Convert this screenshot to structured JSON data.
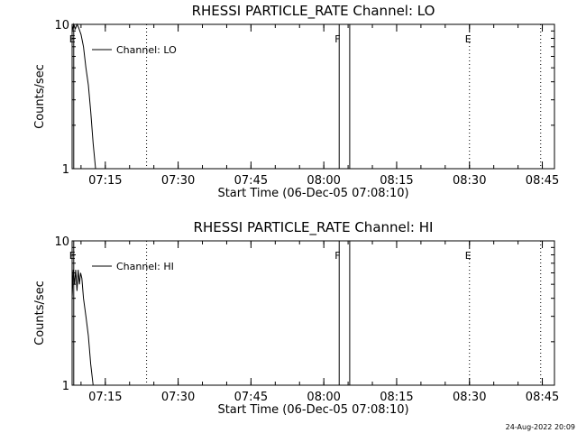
{
  "chart_data": [
    {
      "type": "line",
      "title": "RHESSI PARTICLE_RATE Channel: LO",
      "xlabel": "Start Time (06-Dec-05 07:08:10)",
      "ylabel": "Counts/sec",
      "yscale": "log",
      "ylim": [
        1,
        10
      ],
      "xlim": [
        "07:08:10",
        "08:47:30"
      ],
      "xticks": [
        "07:15",
        "07:30",
        "07:45",
        "08:00",
        "08:15",
        "08:30",
        "08:45"
      ],
      "yticks": [
        "1",
        "10"
      ],
      "legend": {
        "label": "Channel: LO",
        "placement": "top-left"
      },
      "series": [
        {
          "name": "Channel: LO",
          "x": [
            "07:08:10",
            "07:08:30",
            "07:08:50",
            "07:09:10",
            "07:09:30",
            "07:10:00",
            "07:10:30",
            "07:11:00",
            "07:11:30",
            "07:12:00",
            "07:12:30",
            "07:13:00"
          ],
          "y": [
            9.0,
            10.0,
            9.3,
            10.0,
            9.5,
            8.5,
            7.0,
            5.0,
            3.8,
            2.5,
            1.5,
            1.0
          ]
        }
      ],
      "markers": [
        {
          "time": "07:08:30",
          "label": "E",
          "style": "solid"
        },
        {
          "time": "07:23:30",
          "label": "",
          "style": "dotted"
        },
        {
          "time": "08:03:10",
          "label": "F",
          "style": "solid"
        },
        {
          "time": "08:05:20",
          "label": "",
          "style": "solid"
        },
        {
          "time": "08:30:00",
          "label": "E",
          "style": "dotted"
        },
        {
          "time": "08:44:40",
          "label": "",
          "style": "dotted"
        }
      ]
    },
    {
      "type": "line",
      "title": "RHESSI PARTICLE_RATE Channel: HI",
      "xlabel": "Start Time (06-Dec-05 07:08:10)",
      "ylabel": "Counts/sec",
      "yscale": "log",
      "ylim": [
        1,
        10
      ],
      "xlim": [
        "07:08:10",
        "08:47:30"
      ],
      "xticks": [
        "07:15",
        "07:30",
        "07:45",
        "08:00",
        "08:15",
        "08:30",
        "08:45"
      ],
      "yticks": [
        "1",
        "10"
      ],
      "legend": {
        "label": "Channel: HI",
        "placement": "top-left"
      },
      "series": [
        {
          "name": "Channel: HI",
          "x": [
            "07:08:10",
            "07:08:25",
            "07:08:40",
            "07:08:55",
            "07:09:10",
            "07:09:25",
            "07:09:40",
            "07:09:55",
            "07:10:10",
            "07:10:30",
            "07:11:00",
            "07:11:30",
            "07:12:00",
            "07:12:30"
          ],
          "y": [
            4.0,
            6.3,
            5.0,
            6.3,
            4.5,
            6.3,
            5.0,
            6.0,
            5.5,
            4.0,
            3.0,
            2.2,
            1.4,
            1.0
          ]
        }
      ],
      "markers": [
        {
          "time": "07:08:30",
          "label": "E",
          "style": "solid"
        },
        {
          "time": "07:23:30",
          "label": "",
          "style": "dotted"
        },
        {
          "time": "08:03:10",
          "label": "F",
          "style": "solid"
        },
        {
          "time": "08:05:20",
          "label": "",
          "style": "solid"
        },
        {
          "time": "08:30:00",
          "label": "E",
          "style": "dotted"
        },
        {
          "time": "08:44:40",
          "label": "",
          "style": "dotted"
        }
      ]
    }
  ],
  "footer": {
    "timestamp": "24-Aug-2022 20:09"
  }
}
